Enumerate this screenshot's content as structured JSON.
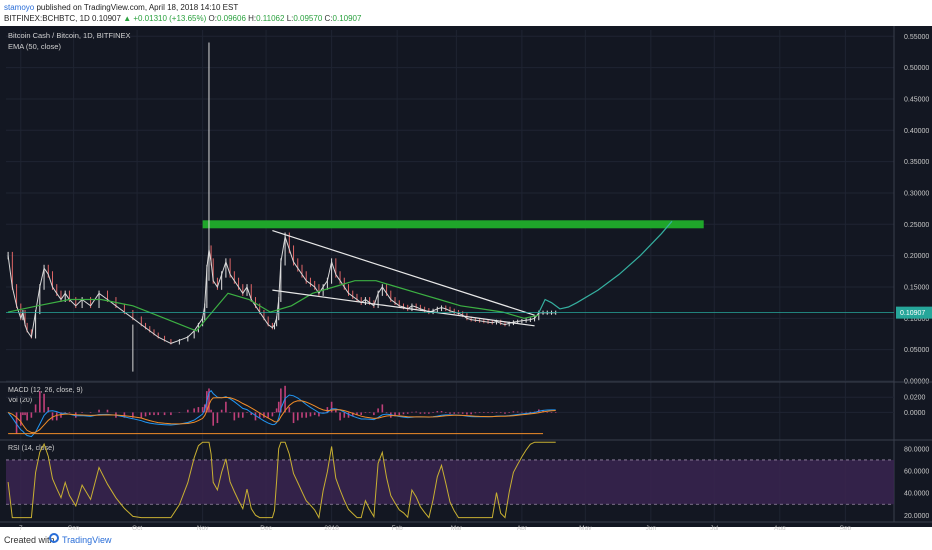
{
  "header": {
    "author": "stamoyo",
    "published_text": "published on TradingView.com, April 18, 2018 14:10 EST",
    "symbol_line": "BITFINEX:BCHBTC, 1D",
    "last_price": "0.10907",
    "change": "▲ +0.01310 (+13.65%)",
    "o_label": "O:",
    "o_value": "0.09606",
    "h_label": "H:",
    "h_value": "0.11062",
    "l_label": "L:",
    "l_value": "0.09570",
    "c_label": "C:",
    "c_value": "0.10907"
  },
  "footer": {
    "created_with": "Created with",
    "brand": "TradingView"
  },
  "chart_data": {
    "type": "line",
    "title": "Bitcoin Cash / Bitcoin, 1D, BITFINEX",
    "indicator_label": "EMA (50, close)",
    "colors": {
      "background": "#131722",
      "price": "#d8d8d8",
      "ema": "#3cb043",
      "resistance": "#1fa62a",
      "wedge": "#e8e8e8",
      "projection": "#35b0a0",
      "last_price_tag": "#26a69a",
      "macd_line": "#2196f3",
      "signal_line": "#f08c28",
      "histogram": "#c0407a",
      "rsi_line": "#c8b032",
      "rsi_band": "#3a2450"
    },
    "price_axis": {
      "ticks": [
        "0.55000",
        "0.50000",
        "0.45000",
        "0.40000",
        "0.35000",
        "0.30000",
        "0.25000",
        "0.20000",
        "0.15000",
        "0.10000",
        "0.05000",
        "0.00000"
      ],
      "range": [
        0,
        0.56
      ],
      "last_value": "0.10907"
    },
    "x_axis": {
      "ticks": [
        "7",
        "Sep",
        "Oct",
        "Nov",
        "Dec",
        "2018",
        "Feb",
        "Mar",
        "Apr",
        "May",
        "Jun",
        "Jul",
        "Aug",
        "Sep"
      ],
      "tick_days": [
        7,
        32,
        62,
        93,
        123,
        154,
        185,
        213,
        244,
        274,
        305,
        335,
        366,
        397
      ],
      "range_days": [
        0,
        420
      ],
      "unit": "days since 2017-08-01"
    },
    "price_series": {
      "x": [
        1,
        3,
        5,
        7,
        8,
        9,
        10,
        12,
        14,
        16,
        18,
        20,
        22,
        24,
        26,
        28,
        30,
        33,
        36,
        40,
        44,
        48,
        52,
        56,
        60,
        64,
        66,
        68,
        70,
        72,
        75,
        78,
        82,
        86,
        89,
        91,
        93,
        94,
        95,
        96,
        97,
        98,
        100,
        102,
        104,
        106,
        108,
        110,
        112,
        114,
        116,
        118,
        120,
        122,
        124,
        126,
        127,
        128,
        129,
        130,
        132,
        134,
        136,
        138,
        140,
        142,
        144,
        146,
        148,
        150,
        152,
        154,
        156,
        158,
        160,
        162,
        164,
        166,
        168,
        170,
        172,
        174,
        176,
        178,
        180,
        182,
        184,
        186,
        188,
        190,
        192,
        194,
        196,
        198,
        200,
        202,
        204,
        206,
        208,
        210,
        212,
        214,
        216,
        218,
        220,
        222,
        224,
        226,
        228,
        230,
        232,
        234,
        236,
        238,
        240,
        242,
        244,
        246,
        248,
        250,
        252,
        254,
        256,
        258,
        260
      ],
      "close": [
        0.2,
        0.15,
        0.12,
        0.1,
        0.11,
        0.09,
        0.08,
        0.07,
        0.11,
        0.15,
        0.18,
        0.17,
        0.15,
        0.14,
        0.13,
        0.14,
        0.13,
        0.12,
        0.13,
        0.12,
        0.14,
        0.13,
        0.12,
        0.11,
        0.1,
        0.09,
        0.085,
        0.08,
        0.075,
        0.07,
        0.065,
        0.06,
        0.065,
        0.07,
        0.08,
        0.09,
        0.1,
        0.12,
        0.18,
        0.21,
        0.19,
        0.16,
        0.15,
        0.17,
        0.19,
        0.17,
        0.16,
        0.15,
        0.14,
        0.15,
        0.13,
        0.12,
        0.11,
        0.1,
        0.09,
        0.085,
        0.09,
        0.1,
        0.13,
        0.19,
        0.23,
        0.21,
        0.19,
        0.18,
        0.17,
        0.16,
        0.155,
        0.15,
        0.14,
        0.15,
        0.16,
        0.19,
        0.17,
        0.16,
        0.15,
        0.14,
        0.135,
        0.13,
        0.125,
        0.13,
        0.125,
        0.12,
        0.14,
        0.15,
        0.14,
        0.13,
        0.125,
        0.12,
        0.118,
        0.115,
        0.12,
        0.118,
        0.115,
        0.113,
        0.11,
        0.112,
        0.115,
        0.117,
        0.115,
        0.112,
        0.11,
        0.108,
        0.105,
        0.1,
        0.098,
        0.097,
        0.096,
        0.095,
        0.094,
        0.093,
        0.095,
        0.092,
        0.09,
        0.092,
        0.094,
        0.095,
        0.096,
        0.097,
        0.098,
        0.1,
        0.109,
        0.109,
        0.109,
        0.109,
        0.109
      ]
    },
    "ema_series": {
      "x": [
        1,
        15,
        30,
        45,
        60,
        75,
        90,
        95,
        105,
        115,
        125,
        135,
        145,
        155,
        165,
        175,
        185,
        195,
        205,
        215,
        225,
        235,
        245,
        252
      ],
      "values": [
        0.11,
        0.12,
        0.13,
        0.13,
        0.12,
        0.1,
        0.08,
        0.1,
        0.14,
        0.13,
        0.11,
        0.12,
        0.14,
        0.15,
        0.16,
        0.16,
        0.15,
        0.14,
        0.13,
        0.12,
        0.115,
        0.11,
        0.1,
        0.105
      ]
    },
    "resistance": {
      "value": 0.25,
      "x_start": 93,
      "x_end": 330
    },
    "wedge": {
      "upper": [
        [
          126,
          0.24
        ],
        [
          250,
          0.105
        ]
      ],
      "lower": [
        [
          126,
          0.145
        ],
        [
          250,
          0.088
        ]
      ]
    },
    "projection": {
      "x": [
        252,
        255,
        258,
        262,
        266,
        270,
        280,
        290,
        300,
        310,
        315
      ],
      "values": [
        0.109,
        0.13,
        0.125,
        0.115,
        0.118,
        0.125,
        0.145,
        0.17,
        0.2,
        0.235,
        0.255
      ]
    },
    "macd_panel": {
      "label": "MACD (12, 26, close, 9)",
      "vol_label": "Vol (20)",
      "ticks": [
        "0.0200",
        "0.0000"
      ],
      "range": [
        -0.035,
        0.04
      ]
    },
    "rsi_panel": {
      "label": "RSI (14, close)",
      "ticks": [
        "80.0000",
        "60.0000",
        "40.0000",
        "20.0000"
      ],
      "range": [
        14,
        88
      ],
      "band": [
        30,
        70
      ]
    }
  }
}
